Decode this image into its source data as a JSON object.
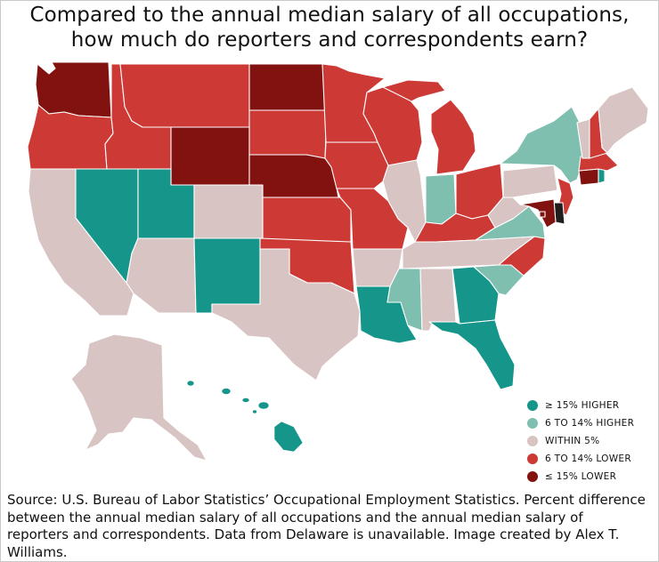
{
  "title": {
    "line1": "Compared to the annual median salary of all occupations,",
    "line2": "how much do reporters and correspondents earn?"
  },
  "colors": {
    "higher15": "#16968a",
    "higher6_14": "#7fbfb0",
    "within5": "#d9c4c4",
    "lower6_14": "#cd3a36",
    "lower15": "#821210",
    "unavailable": "#1e1e1e",
    "border": "#ffffff"
  },
  "legend": [
    {
      "key": "higher15",
      "label": "≥ 15% HIGHER",
      "color": "#16968a"
    },
    {
      "key": "higher6_14",
      "label": "6 TO 14% HIGHER",
      "color": "#7fbfb0"
    },
    {
      "key": "within5",
      "label": "WITHIN 5%",
      "color": "#d9c4c4"
    },
    {
      "key": "lower6_14",
      "label": "6 TO 14% LOWER",
      "color": "#cd3a36"
    },
    {
      "key": "lower15",
      "label": "≤ 15% LOWER",
      "color": "#821210"
    }
  ],
  "states": {
    "WA": "lower15",
    "OR": "lower6_14",
    "CA": "within5",
    "NV": "higher15",
    "ID": "lower6_14",
    "MT": "lower6_14",
    "WY": "lower15",
    "UT": "higher15",
    "CO": "within5",
    "AZ": "within5",
    "NM": "higher15",
    "ND": "lower15",
    "SD": "lower6_14",
    "NE": "lower15",
    "KS": "lower6_14",
    "OK": "lower6_14",
    "TX": "within5",
    "MN": "lower6_14",
    "IA": "lower6_14",
    "MO": "lower6_14",
    "AR": "within5",
    "LA": "higher15",
    "WI": "lower6_14",
    "IL": "within5",
    "MI": "lower6_14",
    "IN": "higher6_14",
    "OH": "lower6_14",
    "KY": "lower6_14",
    "TN": "within5",
    "MS": "higher6_14",
    "AL": "within5",
    "GA": "higher15",
    "FL": "higher15",
    "SC": "higher6_14",
    "NC": "lower6_14",
    "VA": "higher6_14",
    "WV": "within5",
    "PA": "within5",
    "NY": "higher6_14",
    "VT": "within5",
    "NH": "lower6_14",
    "ME": "within5",
    "MA": "lower6_14",
    "RI": "higher15",
    "CT": "lower15",
    "NJ": "lower6_14",
    "DE": "unavailable",
    "MD": "lower15",
    "DC": "lower15",
    "AK": "within5",
    "HI": "higher15"
  },
  "source": "Source: U.S. Bureau of Labor Statistics’ Occupational Employment Statistics. Percent difference between the annual median salary of all occupations and the annual median salary of reporters and correspondents. Data from Delaware is unavailable. Image created by Alex T. Williams."
}
